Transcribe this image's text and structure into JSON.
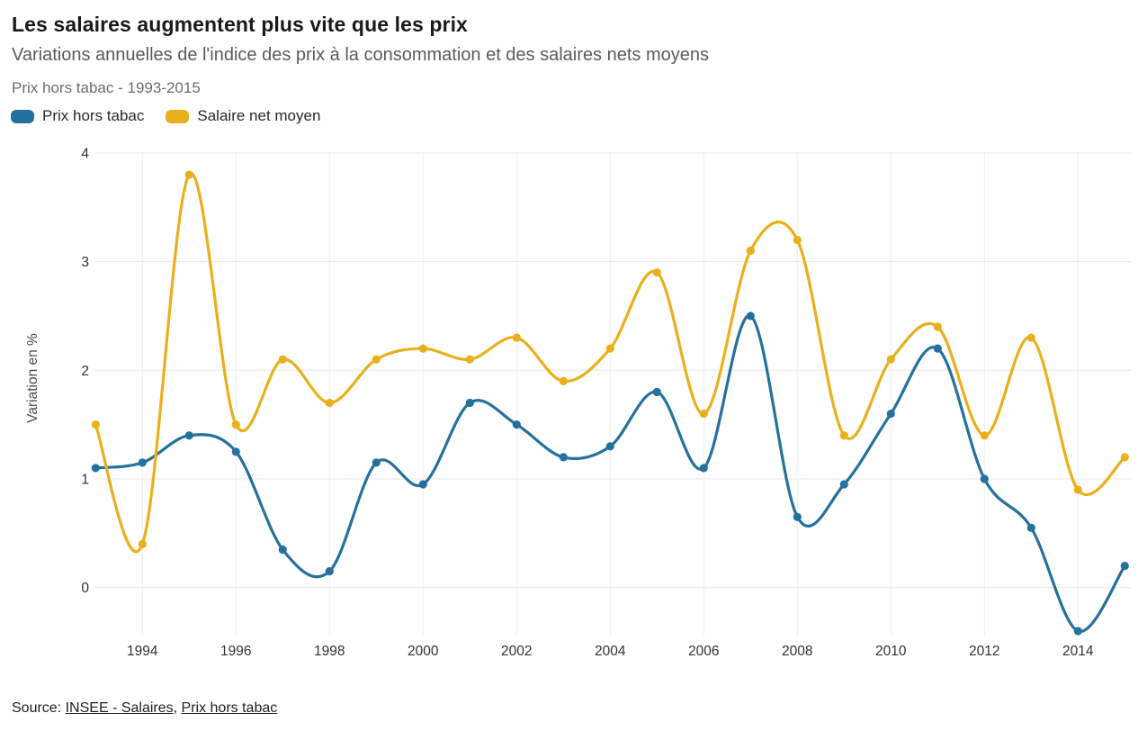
{
  "header": {
    "title": "Les salaires augmentent plus vite que les prix",
    "subtitle": "Variations annuelles de l'indice des prix à la consommation et des salaires nets moyens",
    "note": "Prix hors tabac - 1993-2015"
  },
  "legend": {
    "items": [
      {
        "label": "Prix hors tabac",
        "color": "#25719e"
      },
      {
        "label": "Salaire net moyen",
        "color": "#eab01c"
      }
    ]
  },
  "chart_data": {
    "type": "line",
    "title": "Les salaires augmentent plus vite que les prix",
    "x": [
      1993,
      1994,
      1995,
      1996,
      1997,
      1998,
      1999,
      2000,
      2001,
      2002,
      2003,
      2004,
      2005,
      2006,
      2007,
      2008,
      2009,
      2010,
      2011,
      2012,
      2013,
      2014,
      2015
    ],
    "series": [
      {
        "name": "Prix hors tabac",
        "color": "#25719e",
        "values": [
          1.1,
          1.15,
          1.4,
          1.25,
          0.35,
          0.15,
          1.15,
          0.95,
          1.7,
          1.5,
          1.2,
          1.3,
          1.8,
          1.1,
          2.5,
          0.65,
          0.95,
          1.6,
          2.2,
          1.0,
          0.55,
          -0.4,
          0.2
        ]
      },
      {
        "name": "Salaire net moyen",
        "color": "#eab01c",
        "values": [
          1.5,
          0.4,
          3.8,
          1.5,
          2.1,
          1.7,
          2.1,
          2.2,
          2.1,
          2.3,
          1.9,
          2.2,
          2.9,
          1.6,
          3.1,
          3.2,
          1.4,
          2.1,
          2.4,
          1.4,
          2.3,
          0.9,
          1.2
        ]
      }
    ],
    "ylabel": "Variation en %",
    "yticks": [
      0,
      1,
      2,
      3,
      4
    ],
    "xticks": [
      1994,
      1996,
      1998,
      2000,
      2002,
      2004,
      2006,
      2008,
      2010,
      2012,
      2014
    ],
    "ylim": [
      -0.45,
      4.15
    ],
    "grid": true,
    "legend_position": "top-left",
    "marker": "circle",
    "curve": "smooth"
  },
  "source": {
    "prefix": "Source: ",
    "link_salaires": "INSEE - Salaires",
    "separator": ", ",
    "link_prix": "Prix hors tabac"
  }
}
